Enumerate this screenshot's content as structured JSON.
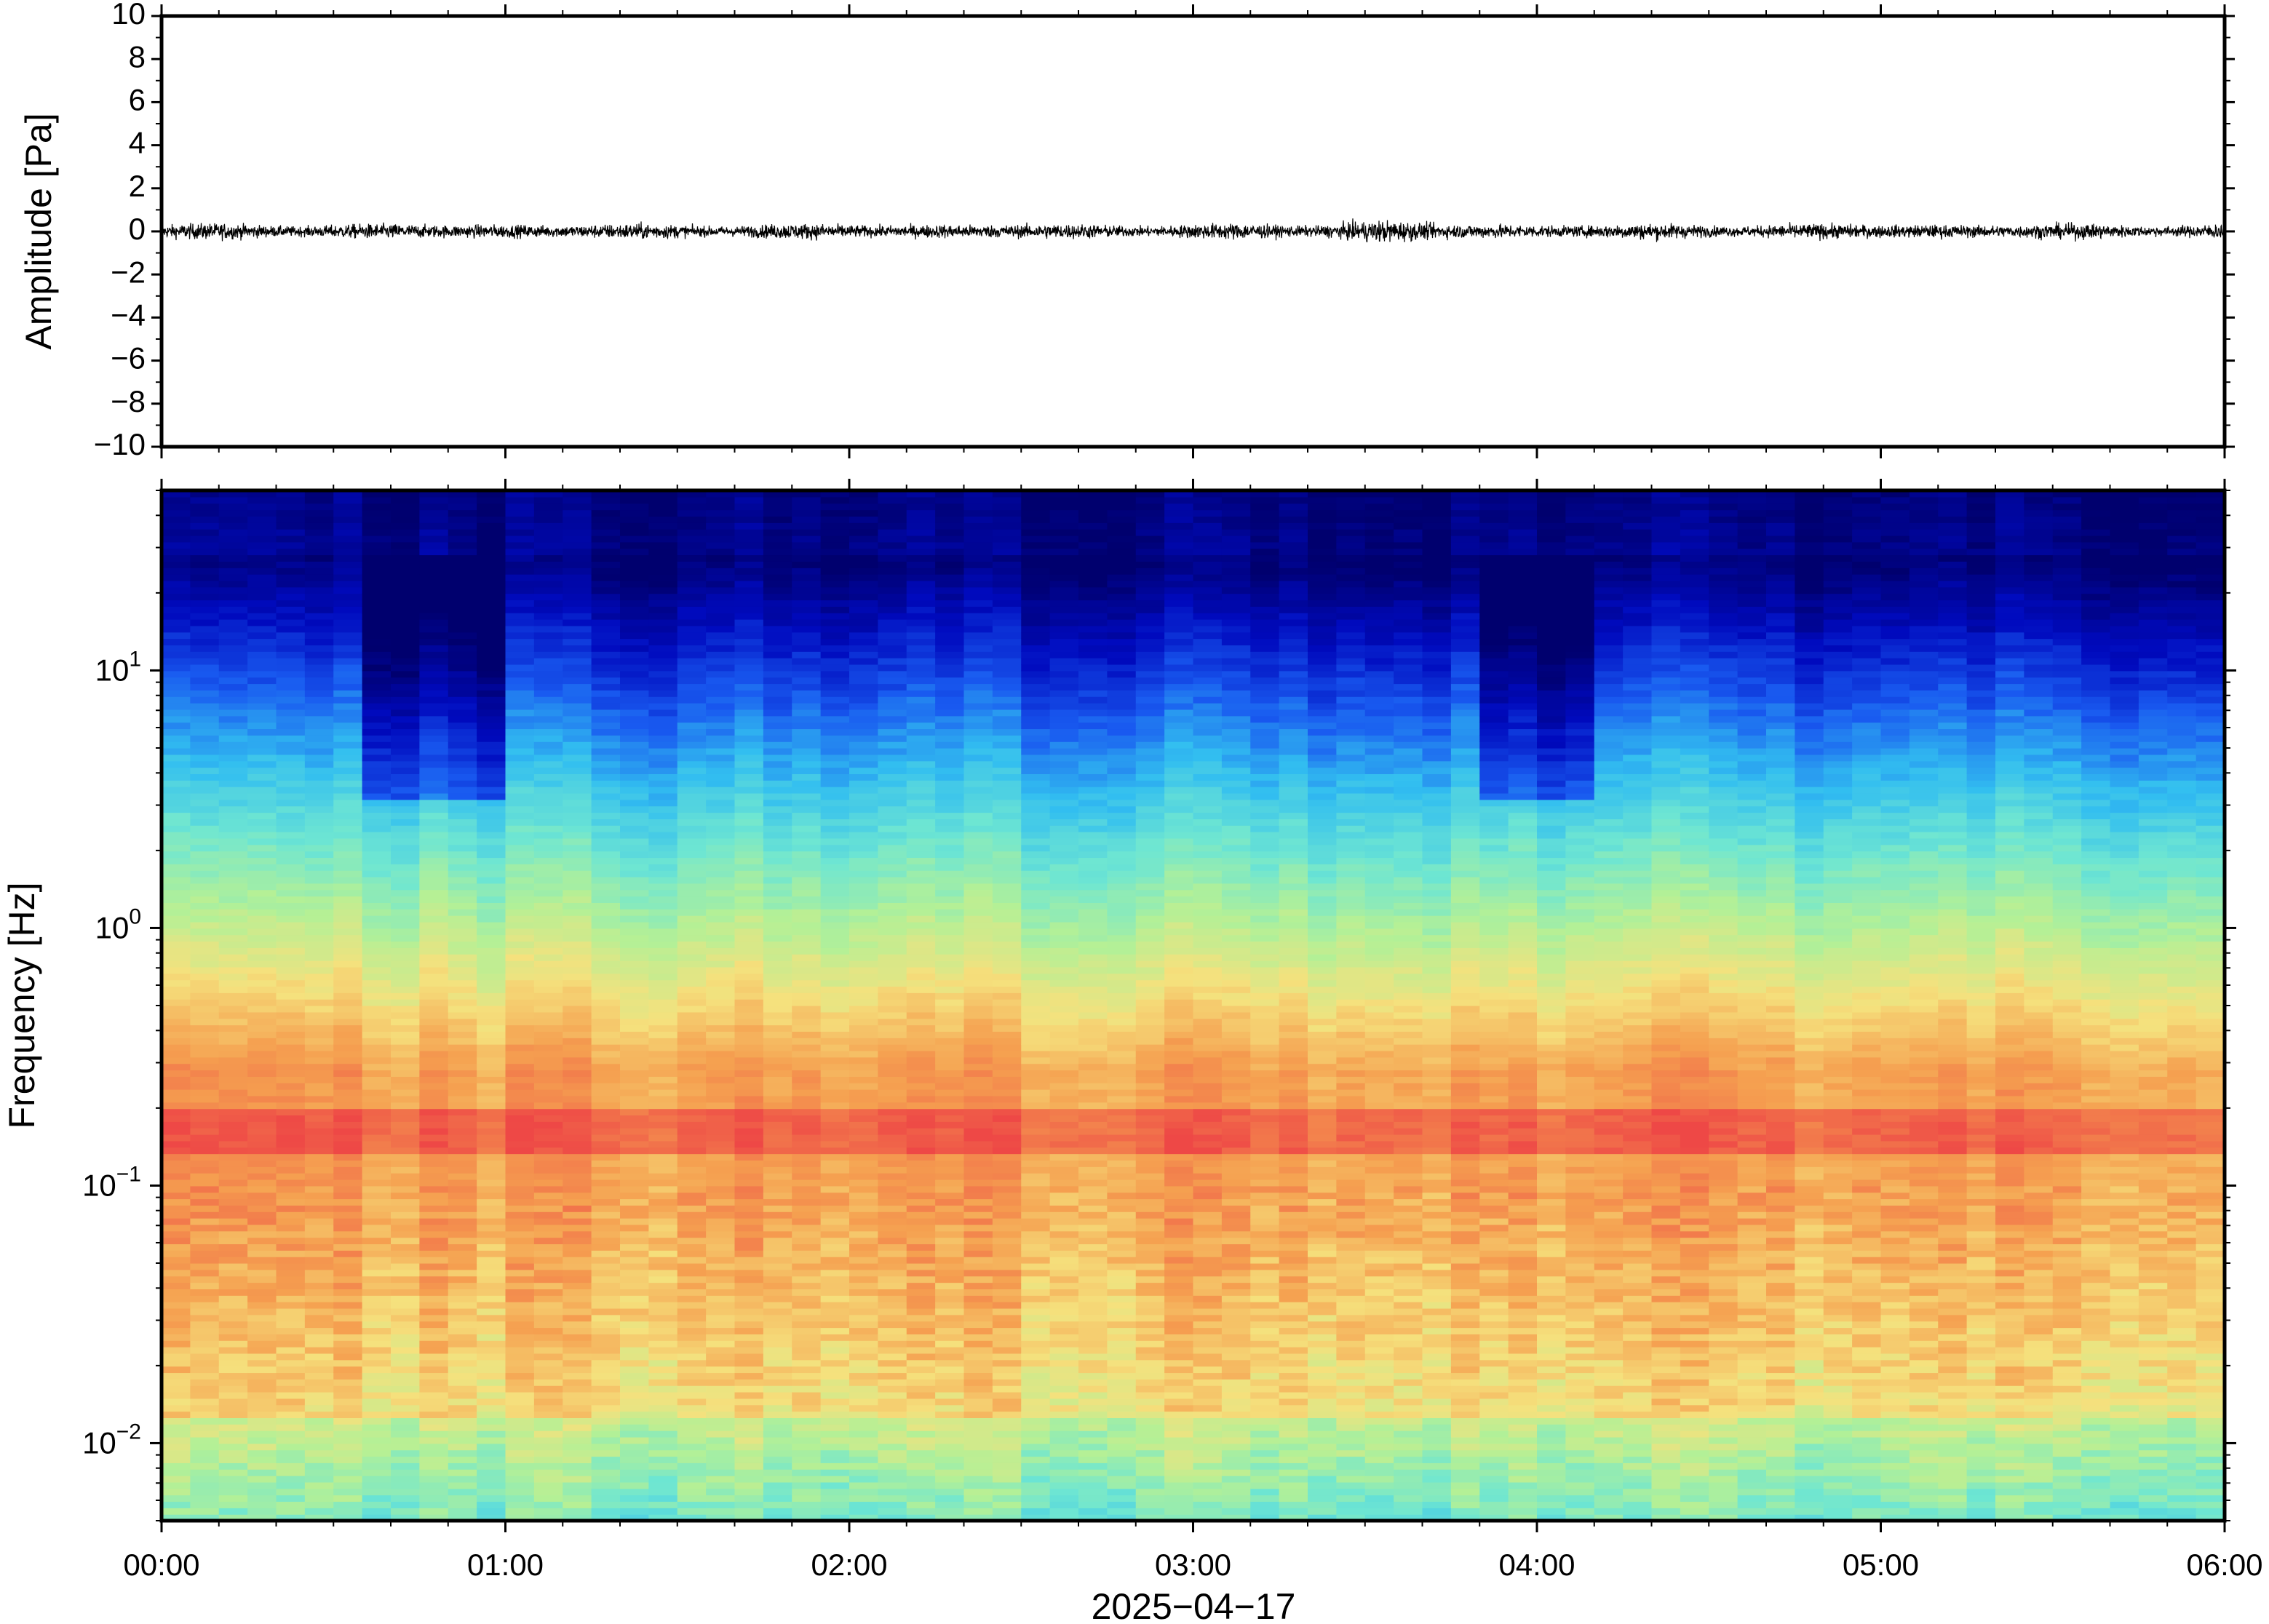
{
  "chart_data": [
    {
      "type": "line",
      "panel": "waveform",
      "ylabel": "Amplitude [Pa]",
      "ylim": [
        -10,
        10
      ],
      "yticks": [
        10,
        8,
        6,
        4,
        2,
        0,
        -2,
        -4,
        -6,
        -8,
        -10
      ],
      "ytick_labels": [
        "10",
        "8",
        "6",
        "4",
        "2",
        "0",
        "−2",
        "−4",
        "−6",
        "−8",
        "−10"
      ],
      "xlim": [
        "00:00",
        "06:00"
      ],
      "series": [
        {
          "color": "#000000",
          "description_values": {
            "baseline": 0,
            "typical_peak_to_peak": 1.2,
            "max_excursion_near": "03:33",
            "max_excursion_value": 1.1
          }
        }
      ]
    },
    {
      "type": "heatmap",
      "panel": "spectrogram",
      "ylabel": "Frequency [Hz]",
      "yscale": "log",
      "ylim": [
        0.005,
        50
      ],
      "yticks": [
        0.01,
        0.1,
        1,
        10
      ],
      "ytick_labels": [
        {
          "base": "10",
          "exp": "−2"
        },
        {
          "base": "10",
          "exp": "−1"
        },
        {
          "base": "10",
          "exp": "0"
        },
        {
          "base": "10",
          "exp": "1"
        }
      ],
      "xticks": [
        "00:00",
        "01:00",
        "02:00",
        "03:00",
        "04:00",
        "05:00",
        "06:00"
      ],
      "xlabel": "2025−04−17",
      "colormap": "jet",
      "colors": [
        "#00007a",
        "#0010c8",
        "#1a6cf0",
        "#3ec8f0",
        "#7ee8c8",
        "#c8f096",
        "#f8e080",
        "#f8a050",
        "#f05048"
      ],
      "features": {
        "microbarom_band_hz": [
          0.13,
          0.2
        ],
        "quiet_high_freq_intervals": [
          [
            "00:37",
            "00:57"
          ],
          [
            "03:52",
            "04:07"
          ]
        ]
      }
    }
  ]
}
